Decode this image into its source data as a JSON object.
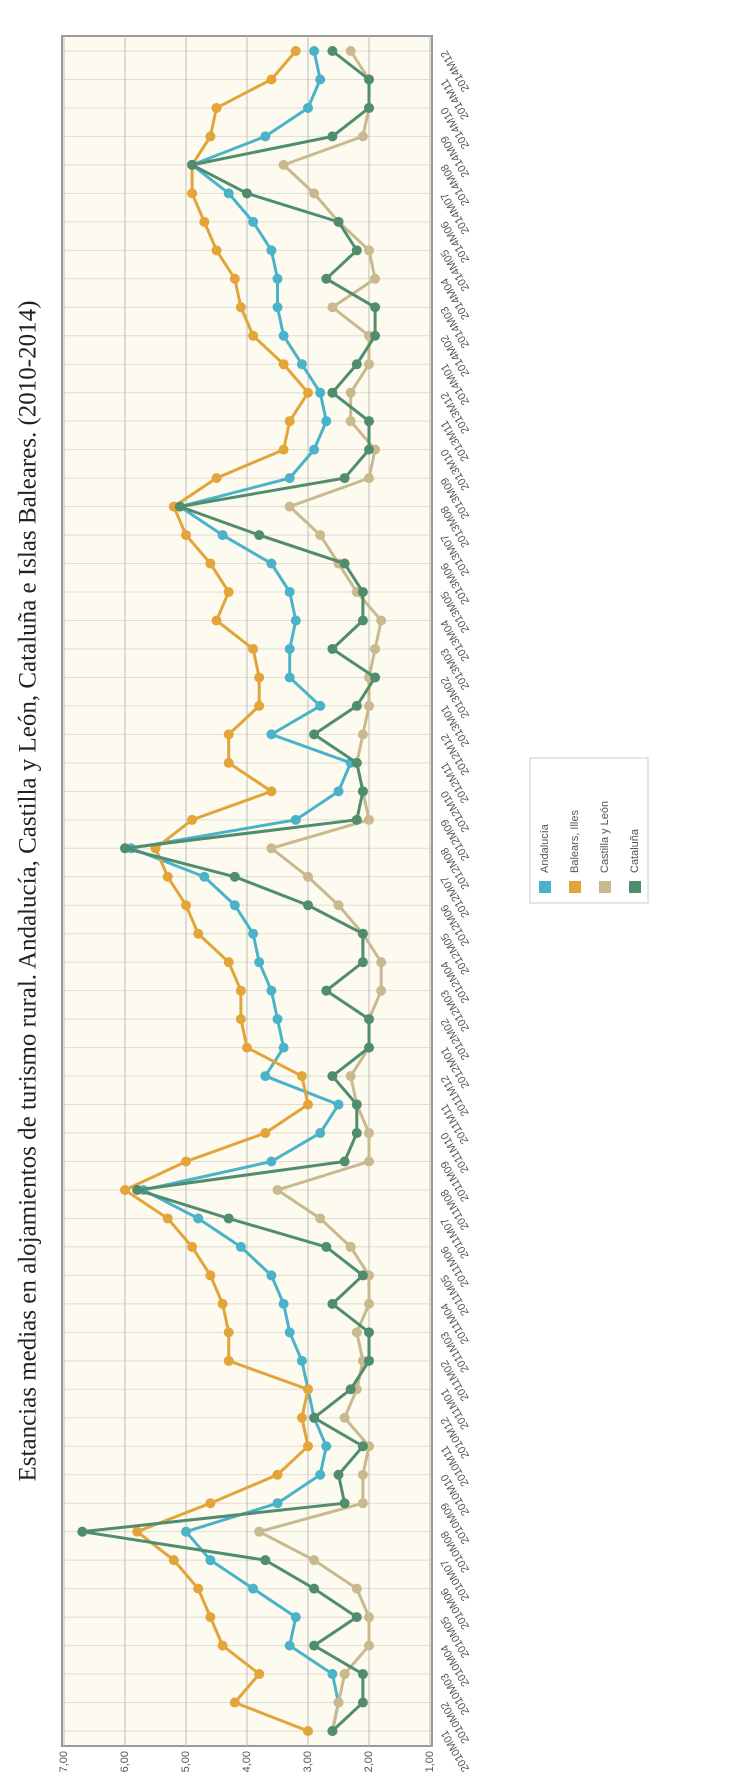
{
  "chart_data": {
    "type": "line",
    "title": "Estancias medias en alojamientos de turismo rural. Andalucía, Castilla y León, Cataluña e Islas Baleares. (2010-2014)",
    "categories": [
      "2010M01",
      "2010M02",
      "2010M03",
      "2010M04",
      "2010M05",
      "2010M06",
      "2010M07",
      "2010M08",
      "2010M09",
      "2010M10",
      "2010M11",
      "2010M12",
      "2011M01",
      "2011M02",
      "2011M03",
      "2011M04",
      "2011M05",
      "2011M06",
      "2011M07",
      "2011M08",
      "2011M09",
      "2011M10",
      "2011M11",
      "2011M12",
      "2012M01",
      "2012M02",
      "2012M03",
      "2012M04",
      "2012M05",
      "2012M06",
      "2012M07",
      "2012M08",
      "2012M09",
      "2012M10",
      "2012M11",
      "2012M12",
      "2013M01",
      "2013M02",
      "2013M03",
      "2013M04",
      "2013M05",
      "2013M06",
      "2013M07",
      "2013M08",
      "2013M09",
      "2013M10",
      "2013M11",
      "2013M12",
      "2014M01",
      "2014M02",
      "2014M03",
      "2014M04",
      "2014M05",
      "2014M06",
      "2014M07",
      "2014M08",
      "2014M09",
      "2014M10",
      "2014M11",
      "2014M12"
    ],
    "series": [
      {
        "name": "Andalucía",
        "color": "#4bb3c9",
        "values": [
          2.6,
          2.5,
          2.6,
          3.3,
          3.2,
          3.9,
          4.6,
          5.0,
          3.5,
          2.8,
          2.7,
          2.9,
          3.0,
          3.1,
          3.3,
          3.4,
          3.6,
          4.1,
          4.8,
          5.7,
          3.6,
          2.8,
          2.5,
          3.7,
          3.4,
          3.5,
          3.6,
          3.8,
          3.9,
          4.2,
          4.7,
          5.9,
          3.2,
          2.5,
          2.3,
          3.6,
          2.8,
          3.3,
          3.3,
          3.2,
          3.3,
          3.6,
          4.4,
          5.1,
          3.3,
          2.9,
          2.7,
          2.8,
          3.1,
          3.4,
          3.5,
          3.5,
          3.6,
          3.9,
          4.3,
          4.9,
          3.7,
          3.0,
          2.8,
          2.9
        ]
      },
      {
        "name": "Balears, Illes",
        "color": "#e3a43a",
        "values": [
          3.0,
          4.2,
          3.8,
          4.4,
          4.6,
          4.8,
          5.2,
          5.8,
          4.6,
          3.5,
          3.0,
          3.1,
          3.0,
          4.3,
          4.3,
          4.4,
          4.6,
          4.9,
          5.3,
          6.0,
          5.0,
          3.7,
          3.0,
          3.1,
          4.0,
          4.1,
          4.1,
          4.3,
          4.8,
          5.0,
          5.3,
          5.5,
          4.9,
          3.6,
          4.3,
          4.3,
          3.8,
          3.8,
          3.9,
          4.5,
          4.3,
          4.6,
          5.0,
          5.2,
          4.5,
          3.4,
          3.3,
          3.0,
          3.4,
          3.9,
          4.1,
          4.2,
          4.5,
          4.7,
          4.9,
          4.9,
          4.6,
          4.5,
          3.6,
          3.2
        ]
      },
      {
        "name": "Castilla y León",
        "color": "#c9b98f",
        "values": [
          2.6,
          2.5,
          2.4,
          2.0,
          2.0,
          2.2,
          2.9,
          3.8,
          2.1,
          2.1,
          2.0,
          2.4,
          2.2,
          2.1,
          2.2,
          2.0,
          2.0,
          2.3,
          2.8,
          3.5,
          2.0,
          2.0,
          2.2,
          2.3,
          2.0,
          2.0,
          1.8,
          1.8,
          2.1,
          2.5,
          3.0,
          3.6,
          2.0,
          2.1,
          2.2,
          2.1,
          2.0,
          2.0,
          1.9,
          1.8,
          2.2,
          2.5,
          2.8,
          3.3,
          2.0,
          1.9,
          2.3,
          2.3,
          2.0,
          2.0,
          2.6,
          1.9,
          2.0,
          2.5,
          2.9,
          3.4,
          2.1,
          2.0,
          2.0,
          2.3
        ]
      },
      {
        "name": "Cataluña",
        "color": "#4f8d6e",
        "values": [
          2.6,
          2.1,
          2.1,
          2.9,
          2.2,
          2.9,
          3.7,
          6.7,
          2.4,
          2.5,
          2.1,
          2.9,
          2.3,
          2.0,
          2.0,
          2.6,
          2.1,
          2.7,
          4.3,
          5.8,
          2.4,
          2.2,
          2.2,
          2.6,
          2.0,
          2.0,
          2.7,
          2.1,
          2.1,
          3.0,
          4.2,
          6.0,
          2.2,
          2.1,
          2.2,
          2.9,
          2.2,
          1.9,
          2.6,
          2.1,
          2.1,
          2.4,
          3.8,
          5.1,
          2.4,
          2.0,
          2.0,
          2.6,
          2.2,
          1.9,
          1.9,
          2.7,
          2.2,
          2.5,
          4.0,
          4.9,
          2.6,
          2.0,
          2.0,
          2.6
        ]
      }
    ],
    "ylim": [
      1,
      7
    ],
    "yticks": [
      {
        "value": 1,
        "label": "1,00"
      },
      {
        "value": 2,
        "label": "2,00"
      },
      {
        "value": 3,
        "label": "3,00"
      },
      {
        "value": 4,
        "label": "4,00"
      },
      {
        "value": 5,
        "label": "5,00"
      },
      {
        "value": 6,
        "label": "6,00"
      },
      {
        "value": 7,
        "label": "7,00"
      }
    ],
    "grid": true
  }
}
